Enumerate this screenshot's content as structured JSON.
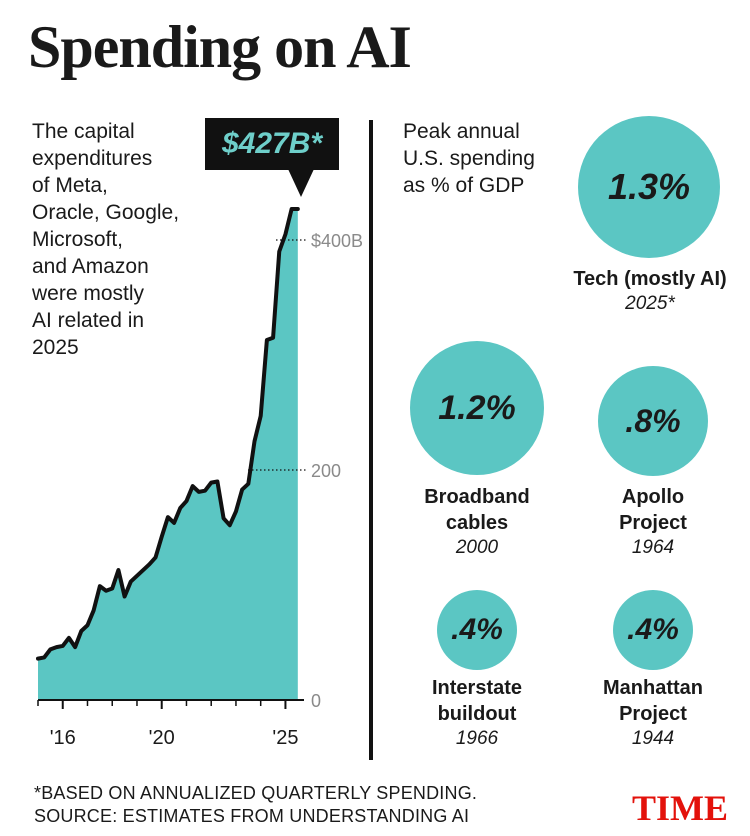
{
  "title": "Spending on AI",
  "intro": "The capital\nexpenditures\nof Meta,\nOracle, Google,\nMicrosoft,\nand Amazon\nwere mostly\nAI related in\n2025",
  "callout": "$427B*",
  "gdp_label": "Peak annual\nU.S. spending\nas % of GDP",
  "bubbles": [
    {
      "value": "1.3%",
      "name": "Tech (mostly AI)",
      "year": "2025*"
    },
    {
      "value": "1.2%",
      "name": "Broadband\ncables",
      "year": "2000"
    },
    {
      "value": ".8%",
      "name": "Apollo\nProject",
      "year": "1964"
    },
    {
      "value": ".4%",
      "name": "Interstate\nbuildout",
      "year": "1966"
    },
    {
      "value": ".4%",
      "name": "Manhattan\nProject",
      "year": "1944"
    }
  ],
  "footnote": {
    "line1": "*BASED ON ANNUALIZED QUARTERLY SPENDING.",
    "line2": "SOURCE: ESTIMATES FROM UNDERSTANDING AI"
  },
  "logo": "TIME",
  "colors": {
    "accent": "#5bc6c3",
    "callout_bg": "#111111",
    "callout_text": "#6ecfca",
    "logo": "#e3120b"
  },
  "chart_data": [
    {
      "type": "area",
      "title": "",
      "xlabel": "",
      "ylabel": "",
      "x_ticks": [
        {
          "value": 2016,
          "label": "'16"
        },
        {
          "value": 2020,
          "label": "'20"
        },
        {
          "value": 2025,
          "label": "'25"
        }
      ],
      "y_ticks": [
        {
          "value": 0,
          "label": "0"
        },
        {
          "value": 200,
          "label": "200"
        },
        {
          "value": 400,
          "label": "$400B"
        }
      ],
      "xlim": [
        2015,
        2025.75
      ],
      "ylim": [
        0,
        427
      ],
      "series": [
        {
          "x": [
            2015.0,
            2015.25,
            2015.5,
            2015.75,
            2016.0,
            2016.25,
            2016.5,
            2016.75,
            2017.0,
            2017.25,
            2017.5,
            2017.75,
            2018.0,
            2018.25,
            2018.5,
            2018.75,
            2019.0,
            2019.25,
            2019.5,
            2019.75,
            2020.0,
            2020.25,
            2020.5,
            2020.75,
            2021.0,
            2021.25,
            2021.5,
            2021.75,
            2022.0,
            2022.25,
            2022.5,
            2022.75,
            2023.0,
            2023.25,
            2023.5,
            2023.75,
            2024.0,
            2024.25,
            2024.5,
            2024.75,
            2025.0,
            2025.25,
            2025.5
          ],
          "y": [
            36,
            37,
            44,
            46,
            47,
            54,
            46,
            60,
            65,
            78,
            99,
            95,
            97,
            113,
            90,
            103,
            108,
            113,
            118,
            124,
            142,
            159,
            154,
            167,
            173,
            186,
            181,
            182,
            189,
            190,
            158,
            152,
            164,
            183,
            188,
            225,
            247,
            313,
            315,
            390,
            405,
            427,
            427
          ]
        }
      ],
      "annotation": "$427B*"
    },
    {
      "type": "bubble",
      "title": "Peak annual U.S. spending as % of GDP",
      "categories": [
        "Tech (mostly AI) 2025*",
        "Broadband cables 2000",
        "Apollo Project 1964",
        "Interstate buildout 1966",
        "Manhattan Project 1944"
      ],
      "values": [
        1.3,
        1.2,
        0.8,
        0.4,
        0.4
      ]
    }
  ]
}
